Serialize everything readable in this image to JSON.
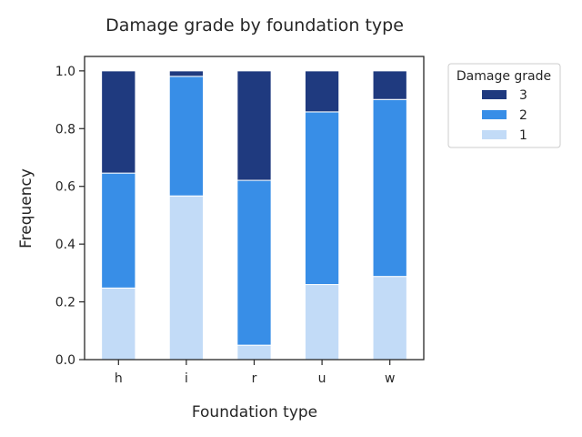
{
  "chart_data": {
    "type": "bar",
    "stacked": true,
    "title": "Damage grade by foundation type",
    "xlabel": "Foundation type",
    "ylabel": "Frequency",
    "categories": [
      "h",
      "i",
      "r",
      "u",
      "w"
    ],
    "ylim": [
      0,
      1.05
    ],
    "yticks": [
      "0.0",
      "0.2",
      "0.4",
      "0.6",
      "0.8",
      "1.0"
    ],
    "grid": false,
    "legend": {
      "title": "Damage grade",
      "placement": "outside-top-right",
      "order": [
        "3",
        "2",
        "1"
      ]
    },
    "series": [
      {
        "name": "1",
        "color": "#c2dbf7",
        "values": [
          0.248,
          0.567,
          0.05,
          0.26,
          0.288
        ]
      },
      {
        "name": "2",
        "color": "#388ee7",
        "values": [
          0.398,
          0.414,
          0.571,
          0.598,
          0.613
        ]
      },
      {
        "name": "3",
        "color": "#1f3a7f",
        "values": [
          0.354,
          0.019,
          0.379,
          0.142,
          0.099
        ]
      }
    ]
  }
}
